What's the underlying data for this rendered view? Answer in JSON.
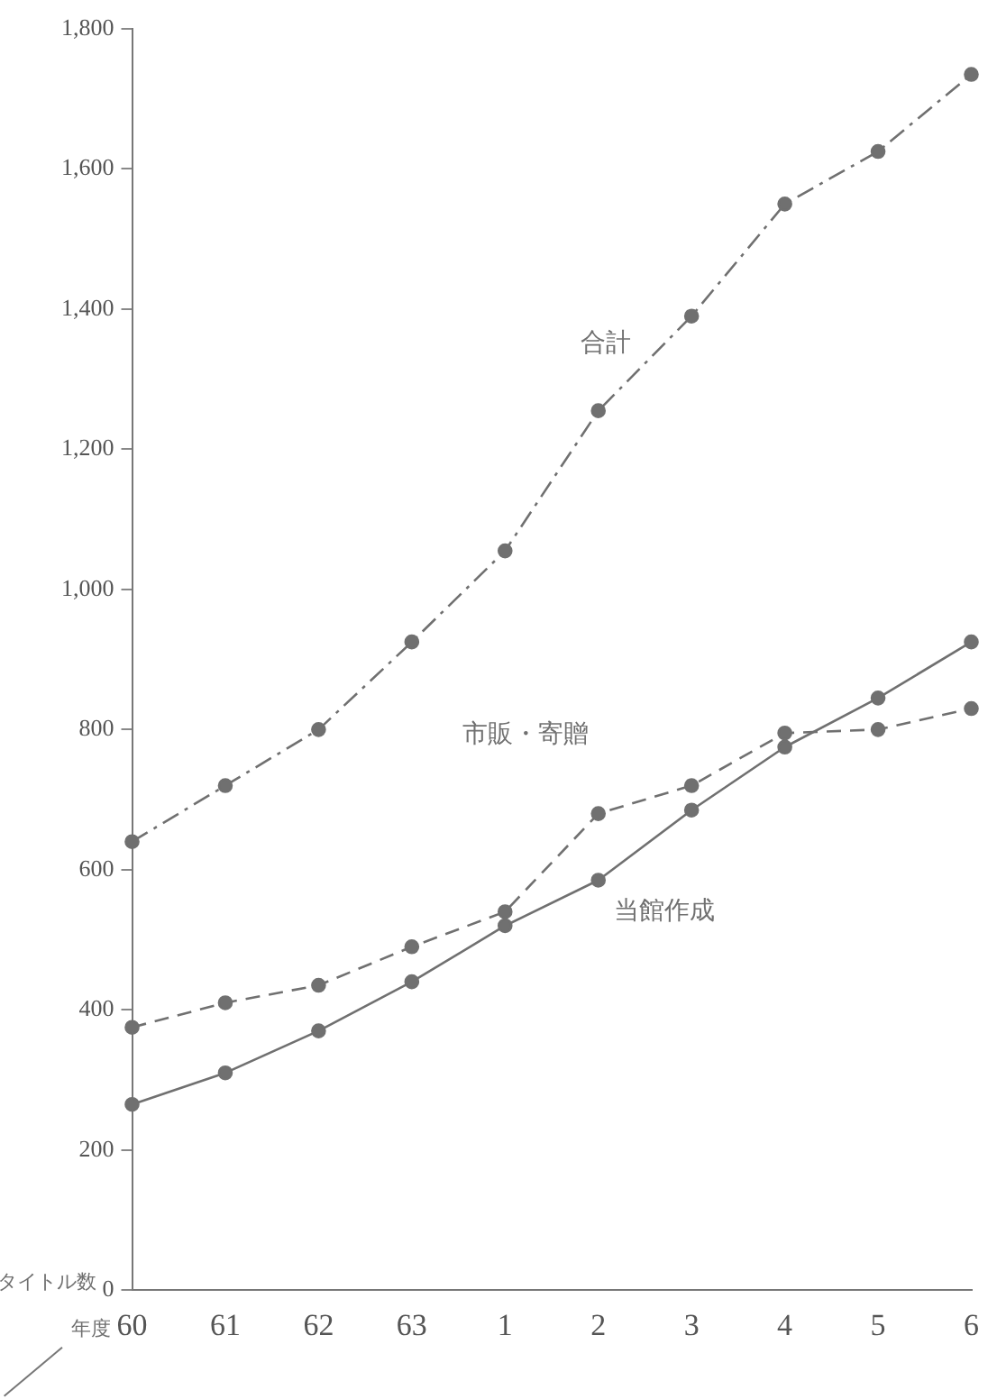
{
  "chart_data": {
    "type": "line",
    "xlabel": "年度",
    "ylabel": "タイトル数",
    "categories": [
      "60",
      "61",
      "62",
      "63",
      "1",
      "2",
      "3",
      "4",
      "5",
      "6"
    ],
    "series": [
      {
        "name": "合計",
        "color": "#707070",
        "line_style": "dashdot",
        "values": [
          640,
          720,
          800,
          925,
          1055,
          1255,
          1390,
          1550,
          1625,
          1735
        ]
      },
      {
        "name": "市販・寄贈",
        "color": "#707070",
        "line_style": "dashed",
        "values": [
          375,
          410,
          435,
          490,
          540,
          680,
          720,
          795,
          800,
          830
        ]
      },
      {
        "name": "当館作成",
        "color": "#707070",
        "line_style": "solid",
        "values": [
          265,
          310,
          370,
          440,
          520,
          585,
          685,
          775,
          845,
          925
        ]
      }
    ],
    "ylim": [
      0,
      1800
    ],
    "yticks": [
      0,
      {
        "value": 200,
        "label": "200"
      },
      400,
      600,
      800,
      {
        "value": 1000,
        "label": "1,000"
      },
      {
        "value": 1200,
        "label": "1,200"
      },
      {
        "value": 1400,
        "label": "1,400"
      },
      {
        "value": 1600,
        "label": "1,600"
      },
      {
        "value": 1800,
        "label": "1,800"
      }
    ],
    "marker": "circle",
    "grid": false,
    "legend": false
  }
}
